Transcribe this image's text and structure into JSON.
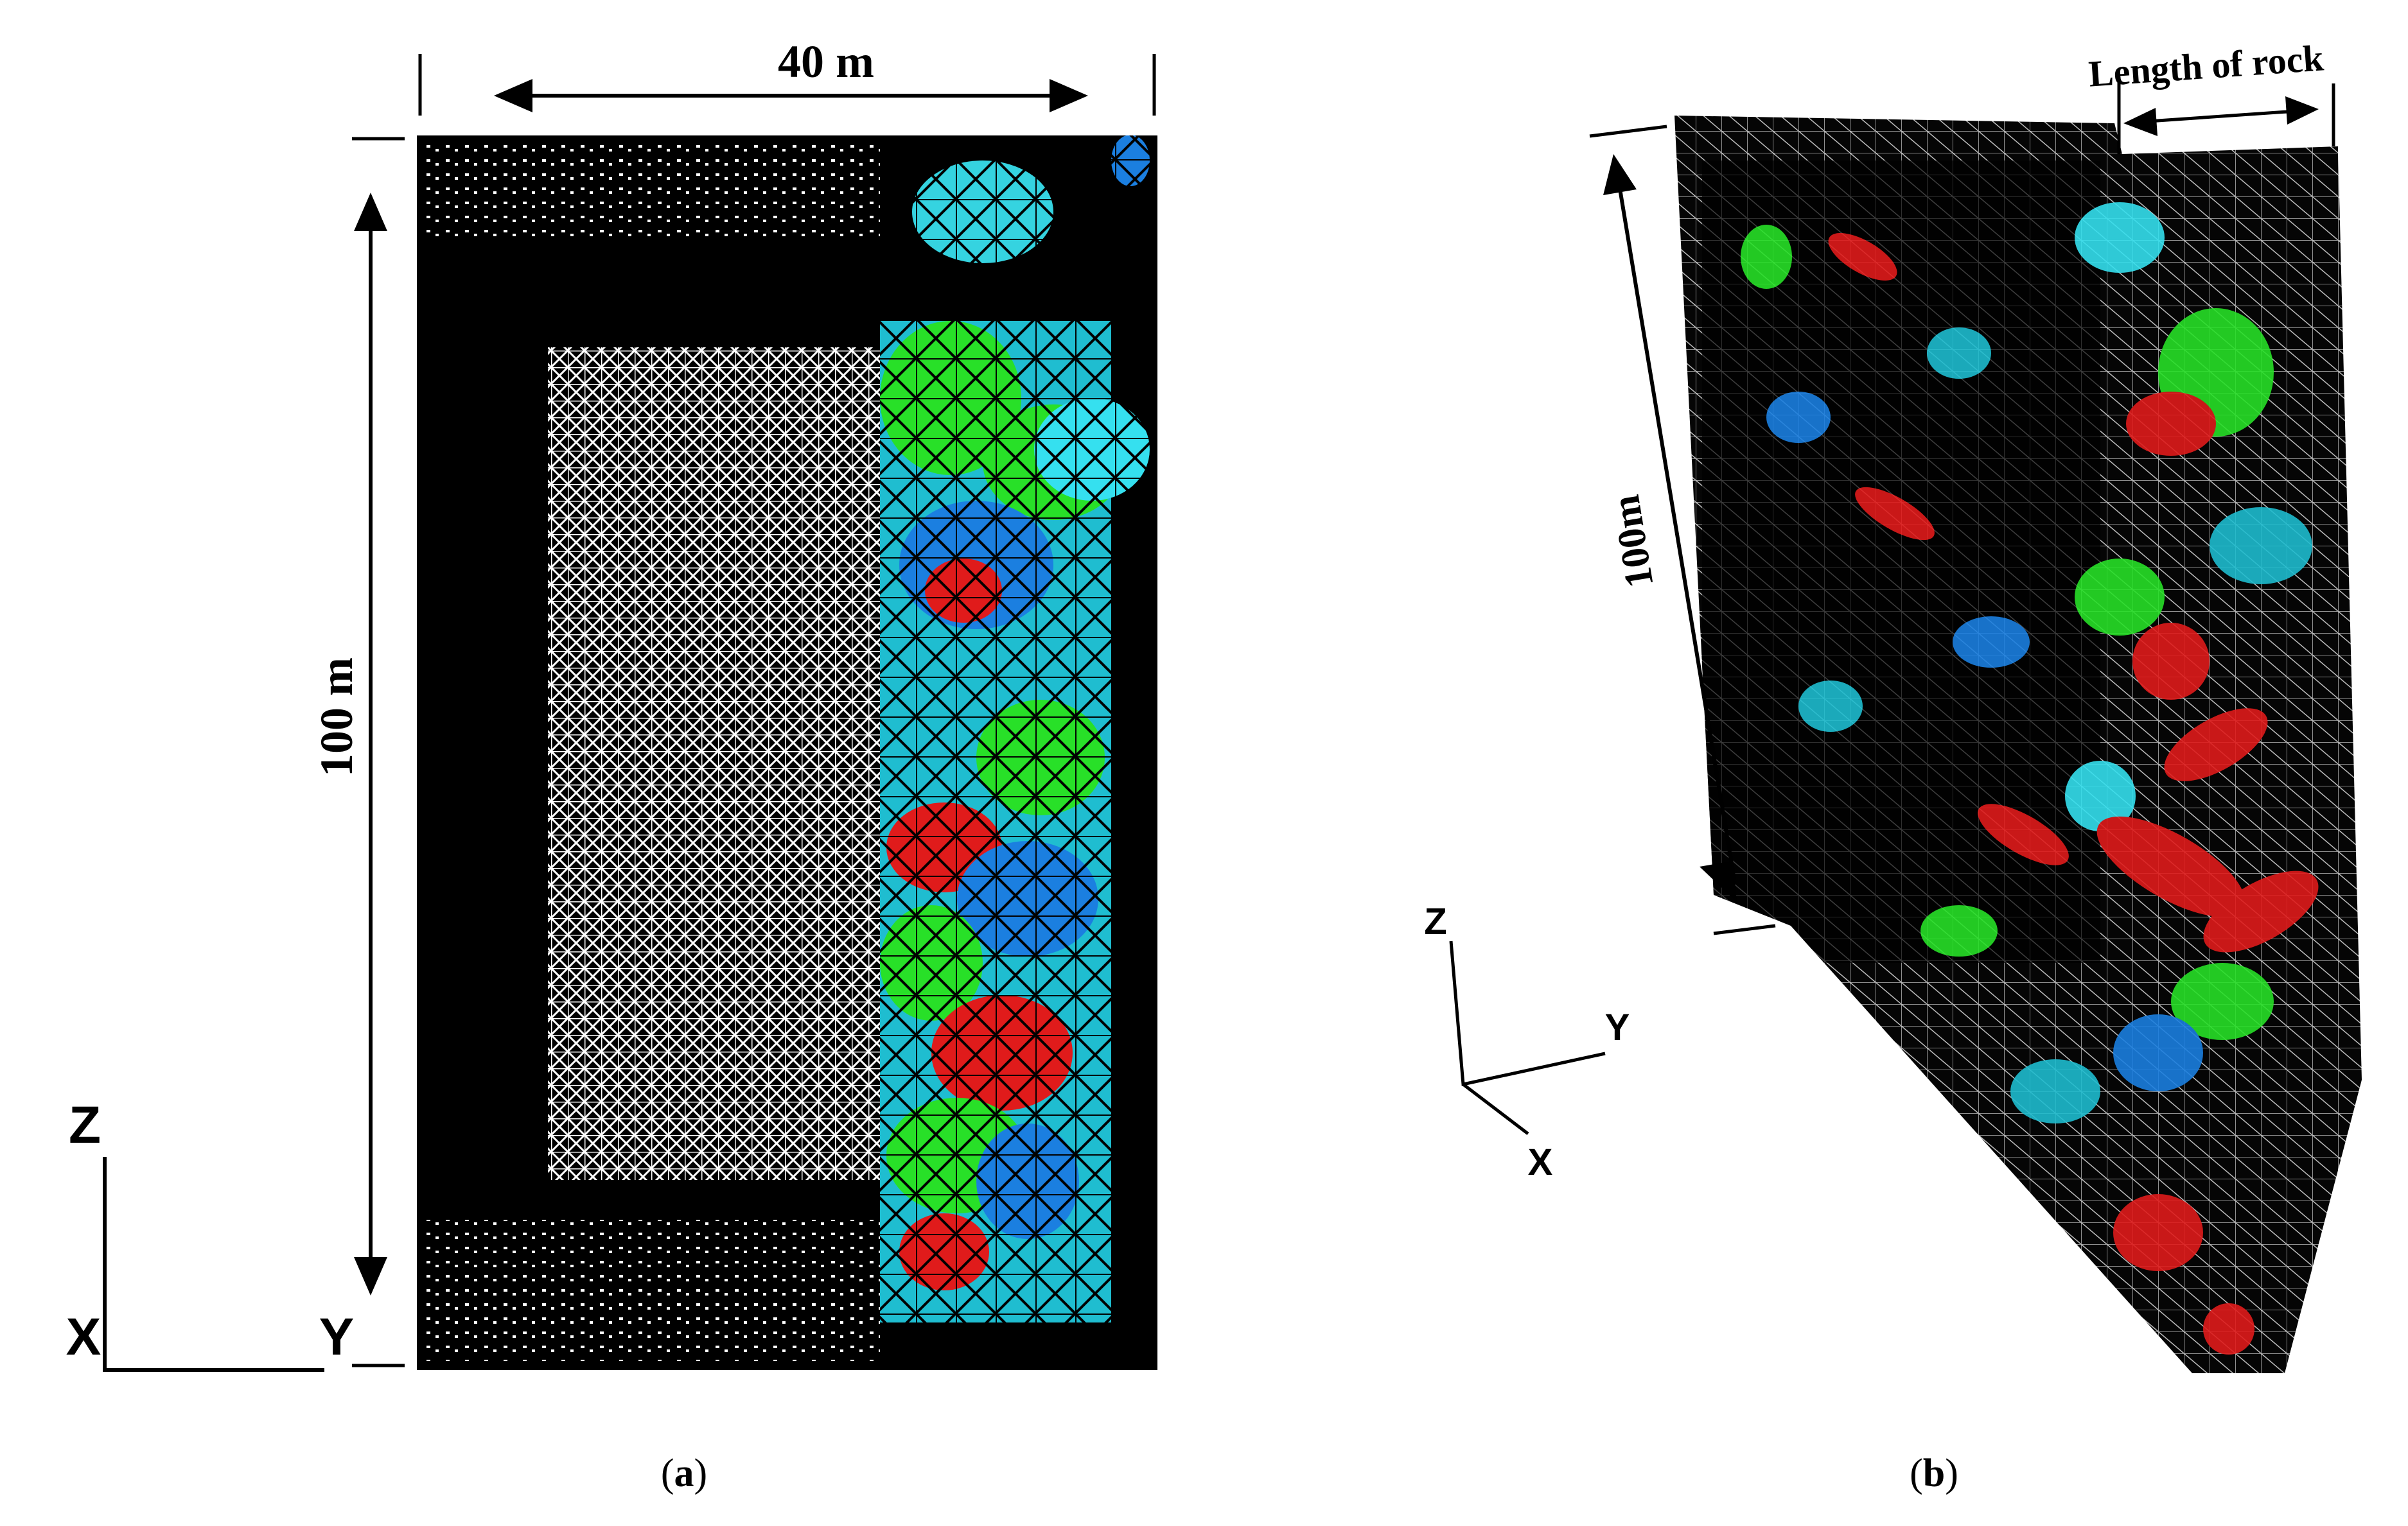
{
  "panel_a": {
    "width_label": "40 m",
    "height_label": "100 m",
    "axes": {
      "z": "Z",
      "x": "X",
      "y": "Y"
    },
    "caption": {
      "open": "(",
      "letter": "a",
      "close": ")"
    }
  },
  "panel_b": {
    "length_label": "Length of rock",
    "height_label": "100m",
    "axes": {
      "z": "Z",
      "y": "Y",
      "x": "X"
    },
    "caption": {
      "open": "(",
      "letter": "b",
      "close": ")"
    }
  }
}
